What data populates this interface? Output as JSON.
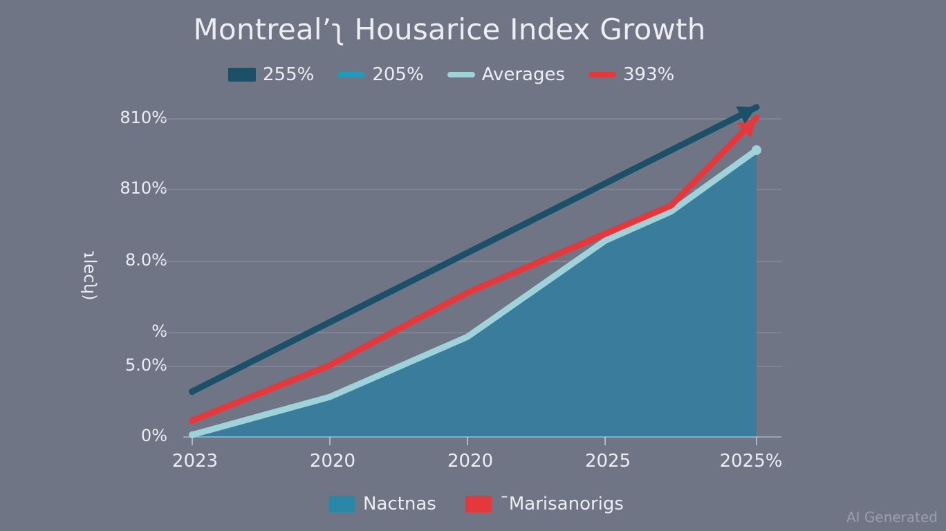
{
  "chart_data": {
    "type": "line",
    "title": "Montreal’ʅ Housarice Index Growth",
    "xlabel": "",
    "ylabel": "ɿlecʮ)",
    "x_tick_labels": [
      "2023",
      "2020",
      "2020",
      "2025",
      "2025%"
    ],
    "y_tick_labels": [
      "0%",
      "5.0%",
      "%",
      "8.0%",
      "810%",
      "810%"
    ],
    "y_tick_positions": [
      0,
      22.2,
      32.8,
      55.2,
      77.8,
      100
    ],
    "y_range": [
      0,
      100
    ],
    "grid": true,
    "legend_top": [
      {
        "label": "255%",
        "color": "#1b5068",
        "swatch": "box"
      },
      {
        "label": "205%",
        "color": "#1f9cbc",
        "swatch": "bar"
      },
      {
        "label": "Averages",
        "color": "#9fd3dc",
        "swatch": "bar"
      },
      {
        "label": "393%",
        "color": "#e4383c",
        "swatch": "bar"
      }
    ],
    "legend_bottom": [
      {
        "label": "Nactnas",
        "color": "#2a87a8"
      },
      {
        "label": "ˉMarisanorigs",
        "color": "#e4383c"
      }
    ],
    "x": [
      0,
      1,
      2,
      3,
      3.48,
      4.1
    ],
    "series": [
      {
        "name": "255%",
        "kind": "line-arrow",
        "color": "#1b5068",
        "x": [
          0,
          4.1
        ],
        "values": [
          14.3,
          103.7
        ]
      },
      {
        "name": "205%",
        "kind": "area",
        "color": "#3a7c9c",
        "x": [
          0,
          1,
          2,
          3,
          3.48,
          4.1
        ],
        "values": [
          0.7,
          12.6,
          31.5,
          61.7,
          70.9,
          90.2
        ]
      },
      {
        "name": "Averages",
        "kind": "line",
        "color": "#9fd3dc",
        "x": [
          0,
          1,
          2,
          3,
          3.48,
          4.1
        ],
        "values": [
          0.7,
          12.6,
          31.5,
          61.7,
          70.9,
          90.2
        ]
      },
      {
        "name": "393%",
        "kind": "line-arrow",
        "color": "#e4383c",
        "x": [
          0,
          1,
          2,
          3,
          3.48,
          4.1
        ],
        "values": [
          5.2,
          22.6,
          45.4,
          63.9,
          72.8,
          100.4
        ]
      }
    ]
  },
  "watermark": "AI Generated"
}
